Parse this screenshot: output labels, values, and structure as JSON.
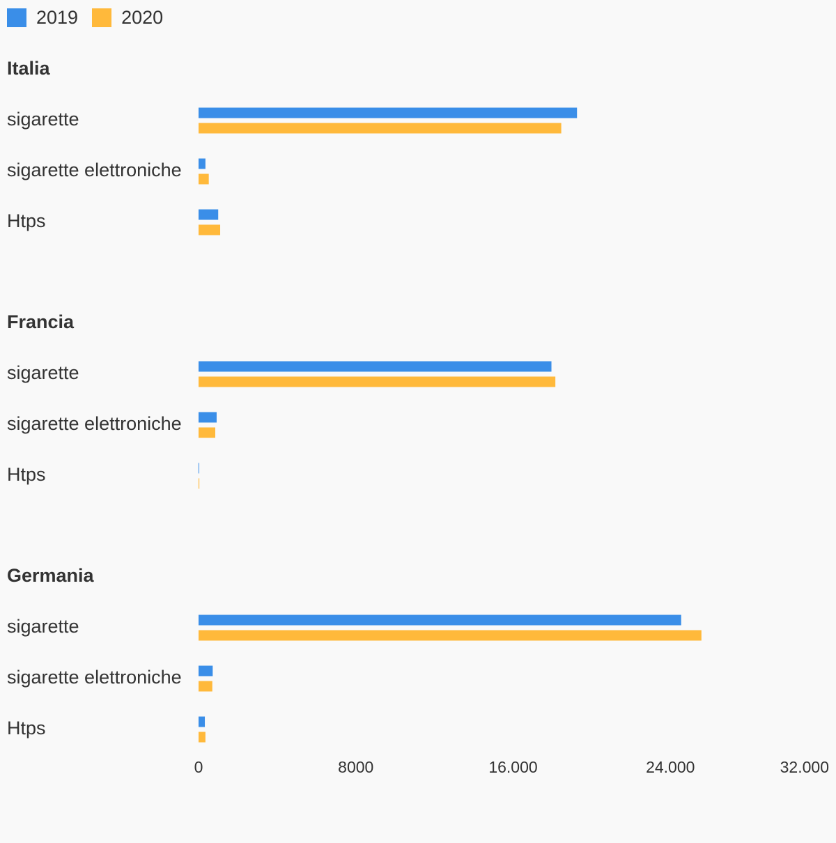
{
  "chart_data": {
    "type": "bar",
    "orientation": "horizontal",
    "series": [
      {
        "name": "2019",
        "color": "#3a8ee8"
      },
      {
        "name": "2020",
        "color": "#ffb93b"
      }
    ],
    "groups": [
      {
        "title": "Italia",
        "categories": [
          {
            "label": "sigarette",
            "values": [
              19250,
              18450
            ]
          },
          {
            "label": "sigarette elettroniche",
            "values": [
              350,
              520
            ]
          },
          {
            "label": "Htps",
            "values": [
              1000,
              1100
            ]
          }
        ]
      },
      {
        "title": "Francia",
        "categories": [
          {
            "label": "sigarette",
            "values": [
              17950,
              18150
            ]
          },
          {
            "label": "sigarette elettroniche",
            "values": [
              920,
              850
            ]
          },
          {
            "label": "Htps",
            "values": [
              5,
              40
            ]
          }
        ]
      },
      {
        "title": "Germania",
        "categories": [
          {
            "label": "sigarette",
            "values": [
              24550,
              25580
            ]
          },
          {
            "label": "sigarette elettroniche",
            "values": [
              720,
              700
            ]
          },
          {
            "label": "Htps",
            "values": [
              320,
              350
            ]
          }
        ]
      }
    ],
    "xlim": [
      0,
      32000
    ],
    "ticks": [
      0,
      8000,
      16000,
      24000,
      32000
    ],
    "tick_labels": [
      "0",
      "8000",
      "16.000",
      "24.000",
      "32.000"
    ],
    "grid": false,
    "legend_position": "top-left"
  }
}
